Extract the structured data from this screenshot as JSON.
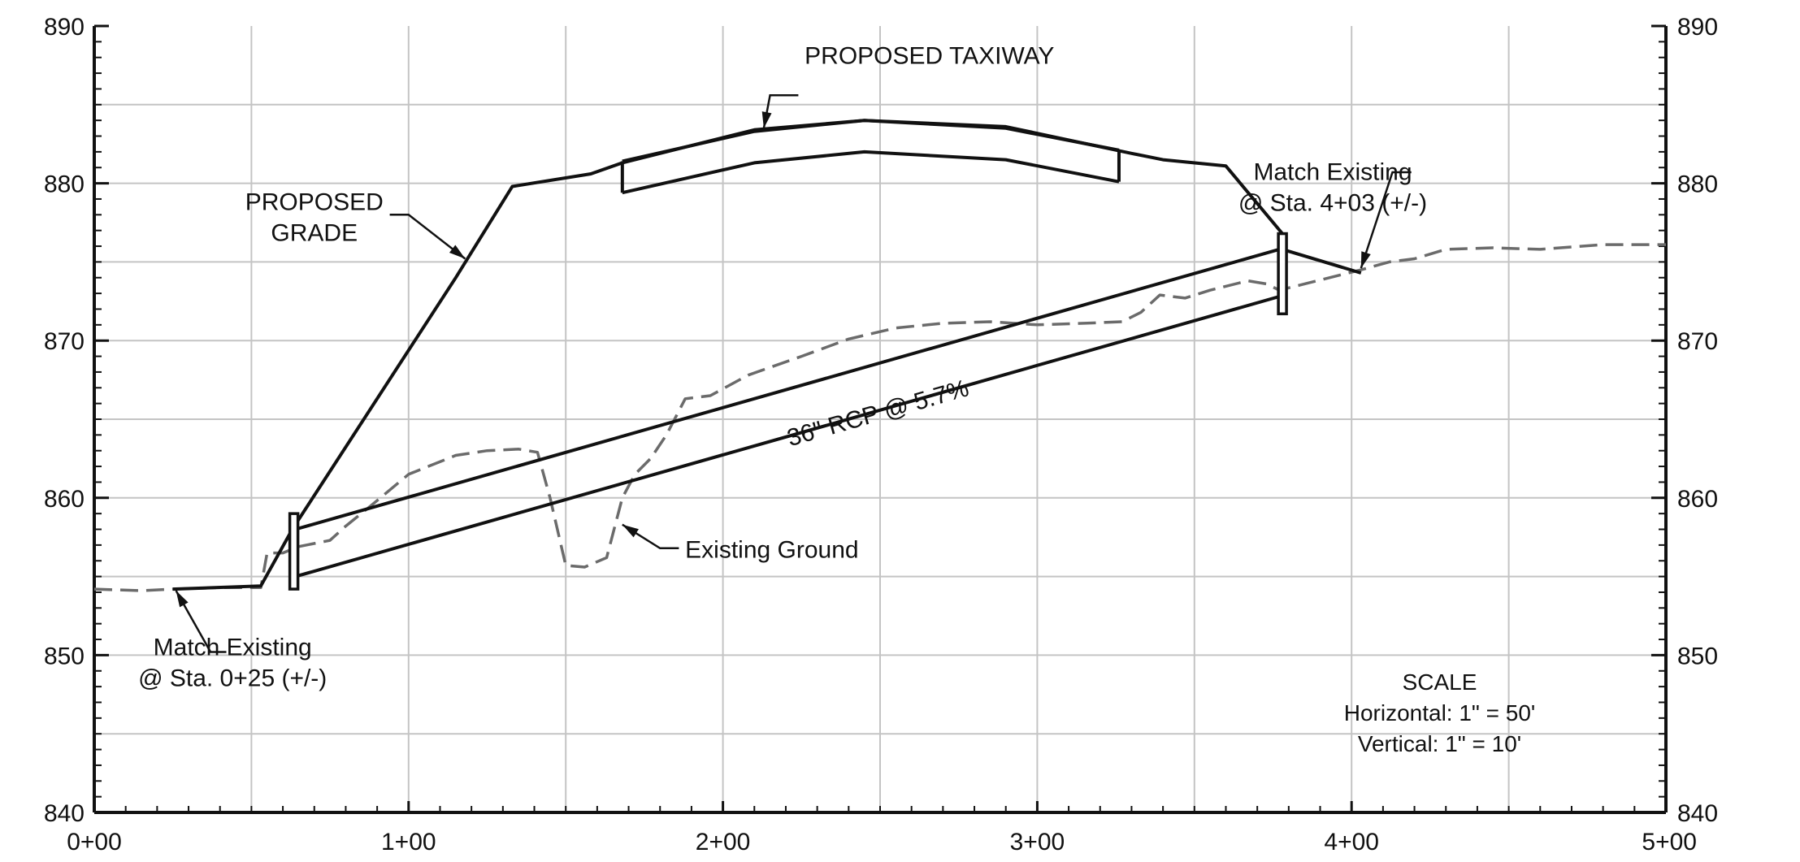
{
  "chart_data": {
    "type": "line",
    "title": "",
    "xlabel": "",
    "ylabel": "",
    "x_unit": "station (ft)",
    "y_unit": "elevation (ft)",
    "xlim": [
      0,
      500
    ],
    "ylim": [
      840,
      890
    ],
    "grid": true,
    "x_ticks": [
      {
        "value": 0,
        "label": "0+00"
      },
      {
        "value": 100,
        "label": "1+00"
      },
      {
        "value": 200,
        "label": "2+00"
      },
      {
        "value": 300,
        "label": "3+00"
      },
      {
        "value": 400,
        "label": "4+00"
      },
      {
        "value": 500,
        "label": "5+00"
      }
    ],
    "y_ticks": [
      {
        "value": 840,
        "label": "840"
      },
      {
        "value": 850,
        "label": "850"
      },
      {
        "value": 860,
        "label": "860"
      },
      {
        "value": 870,
        "label": "870"
      },
      {
        "value": 880,
        "label": "880"
      },
      {
        "value": 890,
        "label": "890"
      }
    ],
    "series": [
      {
        "key": "existing_ground",
        "style": "dashed",
        "color": "#6b6b6b",
        "points": [
          [
            0,
            854.2
          ],
          [
            15,
            854.1
          ],
          [
            25,
            854.2
          ],
          [
            40,
            854.3
          ],
          [
            53,
            854.3
          ],
          [
            55,
            856.5
          ],
          [
            60,
            856.5
          ],
          [
            65,
            856.9
          ],
          [
            75,
            857.3
          ],
          [
            80,
            858.2
          ],
          [
            88,
            859.5
          ],
          [
            100,
            861.5
          ],
          [
            115,
            862.7
          ],
          [
            125,
            863.0
          ],
          [
            135,
            863.1
          ],
          [
            141,
            862.9
          ],
          [
            145,
            860.0
          ],
          [
            150,
            855.7
          ],
          [
            156,
            855.6
          ],
          [
            163,
            856.2
          ],
          [
            168,
            860.0
          ],
          [
            172,
            861.5
          ],
          [
            177,
            862.5
          ],
          [
            182,
            864.0
          ],
          [
            188,
            866.3
          ],
          [
            196,
            866.5
          ],
          [
            208,
            867.8
          ],
          [
            225,
            869.0
          ],
          [
            240,
            870.1
          ],
          [
            255,
            870.8
          ],
          [
            270,
            871.1
          ],
          [
            285,
            871.2
          ],
          [
            300,
            871.0
          ],
          [
            315,
            871.1
          ],
          [
            327,
            871.2
          ],
          [
            333,
            871.8
          ],
          [
            339,
            872.9
          ],
          [
            347,
            872.7
          ],
          [
            355,
            873.2
          ],
          [
            367,
            873.8
          ],
          [
            373,
            873.6
          ],
          [
            377,
            873.2
          ],
          [
            403,
            874.5
          ],
          [
            412,
            875.0
          ],
          [
            420,
            875.2
          ],
          [
            430,
            875.8
          ],
          [
            445,
            875.9
          ],
          [
            460,
            875.8
          ],
          [
            480,
            876.1
          ],
          [
            500,
            876.1
          ]
        ]
      },
      {
        "key": "proposed_grade",
        "style": "solid",
        "color": "#111111",
        "points": [
          [
            25,
            854.2
          ],
          [
            53,
            854.4
          ],
          [
            63,
            858.0
          ],
          [
            115,
            874.0
          ],
          [
            133,
            879.8
          ],
          [
            158,
            880.6
          ],
          [
            168,
            881.3
          ],
          [
            210,
            883.4
          ],
          [
            245,
            884.0
          ],
          [
            290,
            883.6
          ],
          [
            330,
            881.9
          ],
          [
            340,
            881.5
          ],
          [
            360,
            881.1
          ],
          [
            378,
            876.8
          ],
          [
            378,
            875.8
          ],
          [
            403,
            874.3
          ]
        ]
      },
      {
        "key": "taxiway_top",
        "style": "solid",
        "color": "#111111",
        "points": [
          [
            168,
            881.4
          ],
          [
            210,
            883.3
          ],
          [
            245,
            884.0
          ],
          [
            290,
            883.5
          ],
          [
            326,
            882.1
          ]
        ]
      },
      {
        "key": "taxiway_bottom",
        "style": "solid",
        "color": "#111111",
        "points": [
          [
            168,
            879.4
          ],
          [
            210,
            881.3
          ],
          [
            245,
            882.0
          ],
          [
            290,
            881.5
          ],
          [
            326,
            880.1
          ]
        ]
      },
      {
        "key": "pipe_crown",
        "style": "solid",
        "color": "#111111",
        "points": [
          [
            64,
            858.0
          ],
          [
            377,
            875.8
          ]
        ]
      },
      {
        "key": "pipe_invert",
        "style": "solid",
        "color": "#111111",
        "points": [
          [
            64,
            855.0
          ],
          [
            377,
            872.8
          ]
        ]
      }
    ],
    "structures": [
      {
        "key": "headwall_left",
        "x": 63.5,
        "y_bottom": 854.2,
        "y_top": 859.0
      },
      {
        "key": "headwall_right",
        "x": 378,
        "y_bottom": 871.7,
        "y_top": 876.8
      }
    ],
    "annotations": [
      {
        "key": "taxiway",
        "lines": [
          "PROPOSED TAXIWAY"
        ],
        "at": [
          226,
          887.6
        ],
        "leader": [
          [
            224,
            885.6
          ],
          [
            215,
            885.6
          ],
          [
            213,
            883.5
          ]
        ]
      },
      {
        "key": "grade",
        "lines": [
          "PROPOSED",
          "GRADE"
        ],
        "at": [
          70,
          878.3
        ],
        "leader": [
          [
            94,
            878.0
          ],
          [
            100,
            878.0
          ],
          [
            118,
            875.2
          ]
        ]
      },
      {
        "key": "pipe",
        "lines": [
          "36\" RCP @ 5.7%"
        ],
        "at": [
          250,
          864.9
        ],
        "rotate_along": [
          [
            64,
            855.0
          ],
          [
            377,
            872.8
          ]
        ]
      },
      {
        "key": "ground",
        "lines": [
          "Existing Ground"
        ],
        "at": [
          188,
          856.2
        ],
        "leader": [
          [
            186,
            856.8
          ],
          [
            180,
            856.8
          ],
          [
            168,
            858.3
          ]
        ]
      },
      {
        "key": "match_right",
        "lines": [
          "Match Existing",
          "@ Sta. 4+03 (+/-)"
        ],
        "at": [
          394,
          880.2
        ],
        "leader": [
          [
            419,
            880.7
          ],
          [
            413,
            880.7
          ],
          [
            403,
            874.6
          ]
        ]
      },
      {
        "key": "match_left",
        "lines": [
          "Match Existing",
          "@ Sta. 0+25 (+/-)"
        ],
        "at": [
          44,
          850.0
        ],
        "leader": [
          [
            42,
            850.2
          ],
          [
            37,
            850.2
          ],
          [
            26,
            854.1
          ]
        ]
      }
    ],
    "scale_note": {
      "lines": [
        "SCALE",
        "Horizontal: 1\" = 50'",
        "Vertical: 1\" = 10'"
      ]
    }
  }
}
